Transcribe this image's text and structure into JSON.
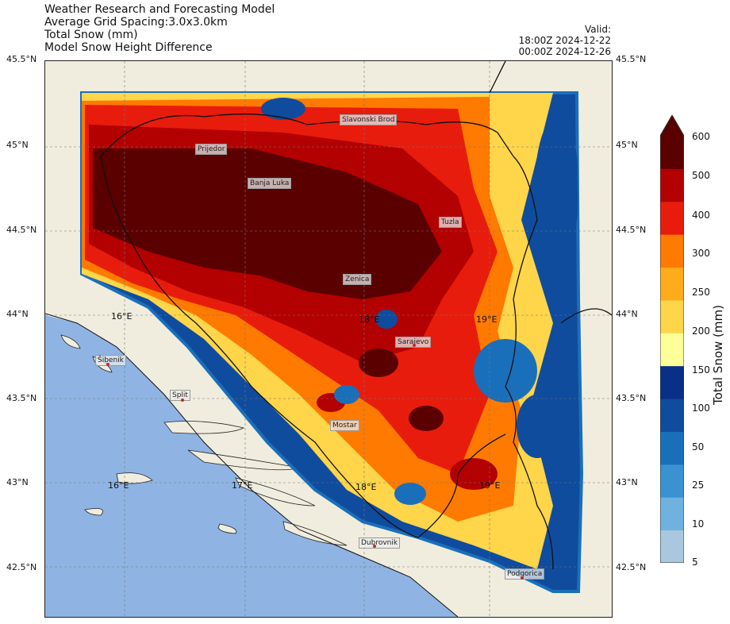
{
  "header": {
    "title_lines": [
      "Weather Research and Forecasting Model",
      "Average Grid Spacing:3.0x3.0km",
      "Total Snow (mm)",
      "Model Snow Height Difference"
    ],
    "valid_lines": [
      "Valid:",
      "18:00Z 2024-12-22",
      "00:00Z 2024-12-26"
    ]
  },
  "axes": {
    "lat_labels": [
      "45.5°N",
      "45°N",
      "44.5°N",
      "44°N",
      "43.5°N",
      "43°N",
      "42.5°N"
    ],
    "lon_labels_top": [
      "16°E",
      "18°E",
      "19°E"
    ],
    "lon_labels_bottom": [
      "16°E",
      "17°E",
      "18°E",
      "19°E"
    ]
  },
  "cities": [
    "Slavonski Brod",
    "Prijedor",
    "Banja Luka",
    "Tuzla",
    "Zenica",
    "Sarajevo",
    "Šibenik",
    "Split",
    "Mostar",
    "Dubrovnik",
    "Podgorica"
  ],
  "colorbar": {
    "title": "Total Snow (mm)",
    "ticks": [
      "600",
      "500",
      "400",
      "300",
      "250",
      "200",
      "150",
      "100",
      "50",
      "25",
      "10",
      "5"
    ],
    "colors": [
      "#a9c8e0",
      "#6fb2e0",
      "#3a93d0",
      "#1a6fba",
      "#0f4c9e",
      "#0a2f86",
      "#ffff99",
      "#ffd54a",
      "#ffab1a",
      "#ff7a00",
      "#e81c0c",
      "#b30000",
      "#5a0000"
    ]
  },
  "colors": {
    "land": "#f0edde",
    "sea": "#8fb4e3",
    "border": "#111111"
  }
}
